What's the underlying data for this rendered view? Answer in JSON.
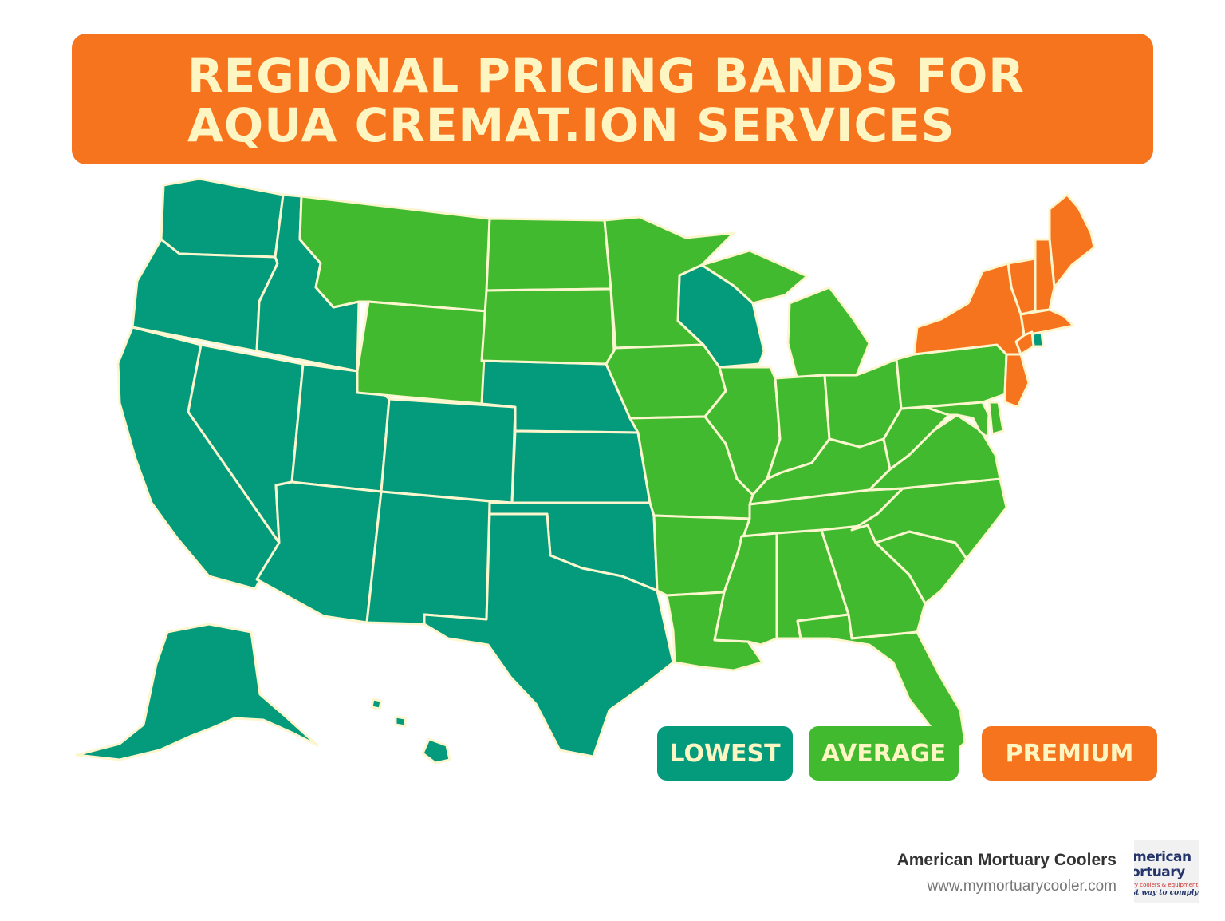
{
  "title": {
    "line1": "REGIONAL PRICING BANDS FOR",
    "line2": "AQUA CREMAT.ION SERVICES"
  },
  "colors": {
    "lowest": "#049B7C",
    "average": "#41BA30",
    "premium": "#F7741E",
    "border": "#FCF6CF",
    "title_text": "#FDF6C3"
  },
  "legend": [
    {
      "label": "LOWEST",
      "band": "lowest"
    },
    {
      "label": "AVERAGE",
      "band": "average"
    },
    {
      "label": "PREMIUM",
      "band": "premium"
    }
  ],
  "regions": {
    "lowest": [
      "Washington",
      "Oregon",
      "California",
      "Idaho",
      "Nevada",
      "Utah",
      "Arizona",
      "Colorado",
      "New Mexico",
      "Nebraska",
      "Kansas",
      "Oklahoma",
      "Texas",
      "Wisconsin",
      "Alaska",
      "Hawaii",
      "Rhode Island"
    ],
    "average": [
      "Montana",
      "Wyoming",
      "North Dakota",
      "South Dakota",
      "Minnesota",
      "Iowa",
      "Missouri",
      "Arkansas",
      "Louisiana",
      "Illinois",
      "Michigan",
      "Indiana",
      "Ohio",
      "Kentucky",
      "Tennessee",
      "Mississippi",
      "Alabama",
      "Georgia",
      "Florida",
      "South Carolina",
      "North Carolina",
      "Virginia",
      "West Virginia",
      "Pennsylvania",
      "Maryland",
      "Delaware"
    ],
    "premium": [
      "Maine",
      "New Hampshire",
      "Vermont",
      "Massachusetts",
      "Connecticut",
      "New York",
      "New Jersey"
    ]
  },
  "branding": {
    "name": "American Mortuary Coolers",
    "url": "www.mymortuarycooler.com",
    "logo_line1": "merican",
    "logo_line2": "ortuary",
    "logo_line3": "ry coolers & equipment",
    "logo_line4": "st way to comply"
  }
}
